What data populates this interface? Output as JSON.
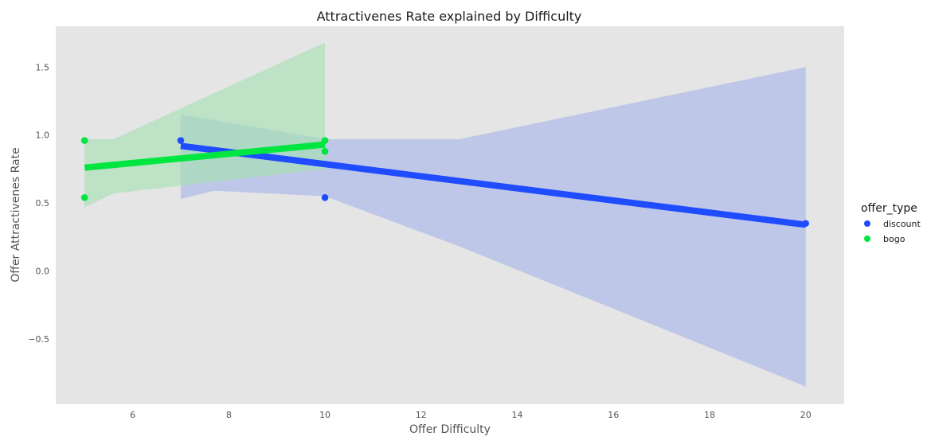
{
  "chart_data": {
    "type": "scatter",
    "title": "Attractivenes Rate explained by Difficulty",
    "xlabel": "Offer Difficulty",
    "ylabel": "Offer Attractivenes Rate",
    "xlim": [
      4.4,
      20.8
    ],
    "ylim": [
      -0.98,
      1.8
    ],
    "xticks": [
      6,
      8,
      10,
      12,
      14,
      16,
      18,
      20
    ],
    "xtick_labels": [
      "6",
      "8",
      "10",
      "12",
      "14",
      "16",
      "18",
      "20"
    ],
    "yticks": [
      -0.5,
      0.0,
      0.5,
      1.0,
      1.5
    ],
    "ytick_labels": [
      "−0.5",
      "0.0",
      "0.5",
      "1.0",
      "1.5"
    ],
    "grid": false,
    "legend": {
      "title": "offer_type",
      "placement": "right",
      "entries": [
        "discount",
        "bogo"
      ]
    },
    "series": [
      {
        "name": "discount",
        "color": "#1f4cff",
        "band_color": "#a6b4e8",
        "points": [
          {
            "x": 7,
            "y": 0.96
          },
          {
            "x": 10,
            "y": 0.54
          },
          {
            "x": 20,
            "y": 0.35
          }
        ],
        "fit": [
          {
            "x": 7,
            "y": 0.92
          },
          {
            "x": 20,
            "y": 0.34
          }
        ],
        "ci_band": [
          {
            "x": 7,
            "lo": 0.53,
            "hi": 1.15
          },
          {
            "x": 7.7,
            "lo": 0.59,
            "hi": 1.11
          },
          {
            "x": 10,
            "lo": 0.55,
            "hi": 0.97
          },
          {
            "x": 12.8,
            "lo": 0.18,
            "hi": 0.97
          },
          {
            "x": 20,
            "lo": -0.85,
            "hi": 1.5
          }
        ]
      },
      {
        "name": "bogo",
        "color": "#00e640",
        "band_color": "#a4e0b2",
        "points": [
          {
            "x": 5,
            "y": 0.96
          },
          {
            "x": 5,
            "y": 0.54
          },
          {
            "x": 10,
            "y": 0.96
          },
          {
            "x": 10,
            "y": 0.88
          }
        ],
        "fit": [
          {
            "x": 5,
            "y": 0.76
          },
          {
            "x": 10,
            "y": 0.93
          }
        ],
        "ci_band": [
          {
            "x": 5,
            "lo": 0.47,
            "hi": 0.97
          },
          {
            "x": 5.6,
            "lo": 0.57,
            "hi": 0.97
          },
          {
            "x": 10,
            "lo": 0.75,
            "hi": 1.68
          }
        ]
      }
    ]
  }
}
